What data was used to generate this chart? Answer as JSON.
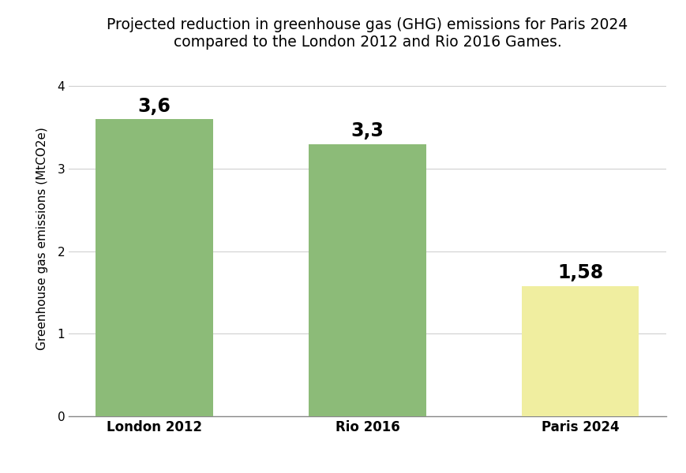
{
  "categories": [
    "London 2012",
    "Rio 2016",
    "Paris 2024"
  ],
  "values": [
    3.6,
    3.3,
    1.58
  ],
  "labels": [
    "3,6",
    "3,3",
    "1,58"
  ],
  "bar_colors": [
    "#8cbb78",
    "#8cbb78",
    "#f0eea0"
  ],
  "title_line1": "Projected reduction in greenhouse gas (GHG) emissions for Paris 2024",
  "title_line2": "compared to the London 2012 and Rio 2016 Games.",
  "ylabel": "Greenhouse gas emissions (MtCO2e)",
  "ylim": [
    0,
    4.3
  ],
  "yticks": [
    0,
    1,
    2,
    3,
    4
  ],
  "background_color": "#ffffff",
  "title_fontsize": 13.5,
  "label_fontsize": 17,
  "ylabel_fontsize": 11,
  "xtick_fontsize": 12,
  "ytick_fontsize": 11,
  "bar_width": 0.55
}
